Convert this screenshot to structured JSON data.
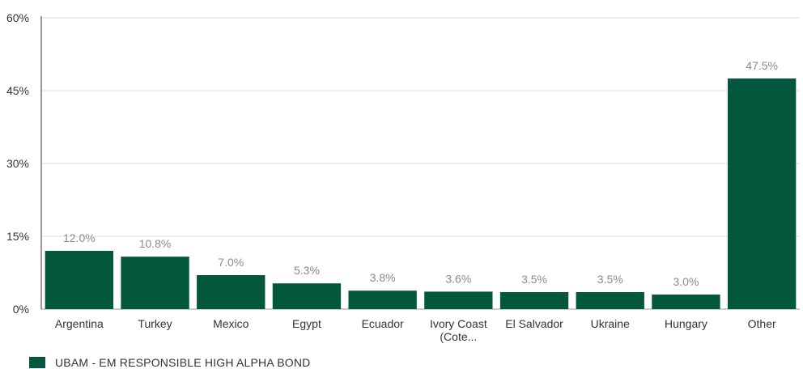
{
  "chart_data": {
    "type": "bar",
    "title": "",
    "xlabel": "",
    "ylabel": "",
    "ylim": [
      0,
      60
    ],
    "yticks": [
      0,
      15,
      30,
      45,
      60
    ],
    "ytick_labels": [
      "0%",
      "15%",
      "30%",
      "45%",
      "60%"
    ],
    "categories": [
      [
        "Argentina"
      ],
      [
        "Turkey"
      ],
      [
        "Mexico"
      ],
      [
        "Egypt"
      ],
      [
        "Ecuador"
      ],
      [
        "Ivory Coast",
        "(Cote..."
      ],
      [
        "El Salvador"
      ],
      [
        "Ukraine"
      ],
      [
        "Hungary"
      ],
      [
        "Other"
      ]
    ],
    "series": [
      {
        "name": "UBAM - EM RESPONSIBLE HIGH ALPHA BOND",
        "values": [
          12.0,
          10.8,
          7.0,
          5.3,
          3.8,
          3.6,
          3.5,
          3.5,
          3.0,
          47.5
        ],
        "value_labels": [
          "12.0%",
          "10.8%",
          "7.0%",
          "5.3%",
          "3.8%",
          "3.6%",
          "3.5%",
          "3.5%",
          "3.0%",
          "47.5%"
        ],
        "color": "#03573d"
      }
    ],
    "grid": true,
    "legend_position": "bottom-left"
  },
  "legend": {
    "label": "UBAM - EM RESPONSIBLE HIGH ALPHA BOND",
    "color": "#03573d"
  }
}
